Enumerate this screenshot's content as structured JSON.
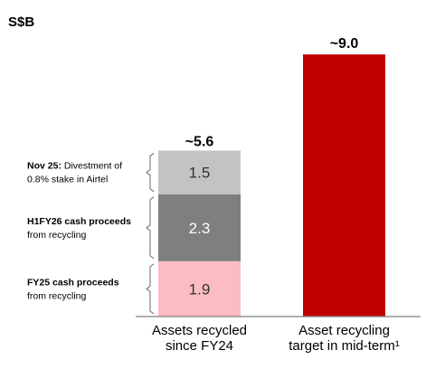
{
  "unit": "S$B",
  "colors": {
    "segment_bottom": "#fbbcc2",
    "segment_middle": "#7f7f7f",
    "segment_top": "#c3c3c3",
    "target_bar": "#c00000",
    "axis": "#7f7f7f",
    "bracket": "#7f7f7f"
  },
  "chart_data": {
    "type": "bar",
    "stacked": true,
    "categories": [
      "Assets recycled since FY24",
      "Asset recycling target in mid-term¹"
    ],
    "category_labels": [
      [
        "Assets recycled",
        "since FY24"
      ],
      [
        "Asset recycling",
        "target in mid-term¹"
      ]
    ],
    "segments": [
      {
        "value": 1.9,
        "value_label": "1.9",
        "annotation_bold": "FY25 cash proceeds",
        "annotation_rest": "",
        "annotation_line2": "from recycling",
        "color_key": "segment_bottom",
        "label_color": "#333333"
      },
      {
        "value": 2.3,
        "value_label": "2.3",
        "annotation_bold": "H1FY26 cash proceeds",
        "annotation_rest": "",
        "annotation_line2": "from recycling",
        "color_key": "segment_middle",
        "label_color": "#ffffff"
      },
      {
        "value": 1.5,
        "value_label": "1.5",
        "annotation_bold": "Nov 25:",
        "annotation_rest": " Divestment of",
        "annotation_line2": "0.8% stake in Airtel",
        "color_key": "segment_top",
        "label_color": "#333333"
      }
    ],
    "totals": [
      {
        "value": 5.6,
        "label": "~5.6"
      },
      {
        "value": 9.0,
        "label": "~9.0"
      }
    ],
    "target_value": 9.0,
    "ylim": [
      0,
      9.0
    ],
    "grid": false,
    "legend": "none"
  }
}
